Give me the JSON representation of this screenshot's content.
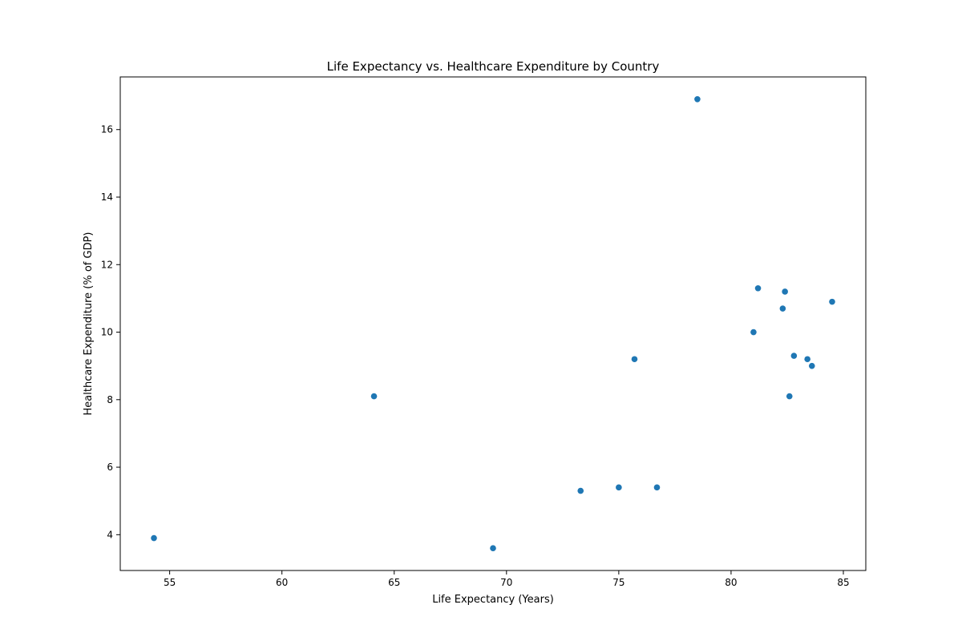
{
  "chart_data": {
    "type": "scatter",
    "title": "Life Expectancy vs. Healthcare Expenditure by Country",
    "xlabel": "Life Expectancy (Years)",
    "ylabel": "Healthcare Expenditure (% of GDP)",
    "xlim": [
      52.8,
      86.0
    ],
    "ylim": [
      2.94,
      17.56
    ],
    "xticks": [
      55,
      60,
      65,
      70,
      75,
      80,
      85
    ],
    "yticks": [
      4,
      6,
      8,
      10,
      12,
      14,
      16
    ],
    "grid": false,
    "marker_color": "#1f77b4",
    "series": [
      {
        "points": [
          {
            "x": 78.5,
            "y": 16.9
          },
          {
            "x": 81.2,
            "y": 11.3
          },
          {
            "x": 82.4,
            "y": 11.2
          },
          {
            "x": 84.5,
            "y": 10.9
          },
          {
            "x": 82.3,
            "y": 10.7
          },
          {
            "x": 81.0,
            "y": 10.0
          },
          {
            "x": 82.8,
            "y": 9.3
          },
          {
            "x": 83.4,
            "y": 9.2
          },
          {
            "x": 75.7,
            "y": 9.2
          },
          {
            "x": 83.6,
            "y": 9.0
          },
          {
            "x": 64.1,
            "y": 8.1
          },
          {
            "x": 82.6,
            "y": 8.1
          },
          {
            "x": 75.0,
            "y": 5.4
          },
          {
            "x": 76.7,
            "y": 5.4
          },
          {
            "x": 73.3,
            "y": 5.3
          },
          {
            "x": 54.3,
            "y": 3.9
          },
          {
            "x": 69.4,
            "y": 3.6
          }
        ]
      }
    ]
  }
}
